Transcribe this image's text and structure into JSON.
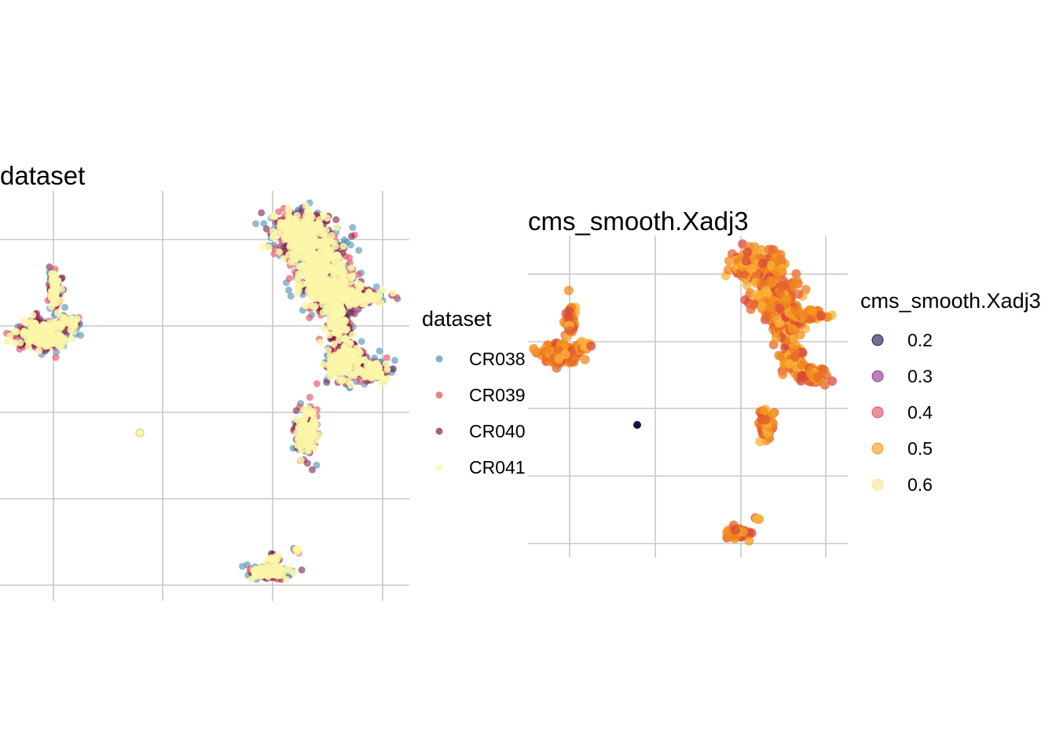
{
  "colors": {
    "CR038": "#4f8db3",
    "CR039": "#e3475a",
    "CR040": "#7e1e4f",
    "CR041": "#fbf7a8",
    "scale": [
      "#1b0c41",
      "#8d2c8a",
      "#d94a5b",
      "#f7941d",
      "#fae38f"
    ]
  },
  "chart_data": [
    {
      "type": "scatter",
      "title": "dataset",
      "xlabel": "",
      "ylabel": "",
      "x_breaks": 4,
      "y_breaks": 5,
      "grid": true,
      "axis_labels_shown": false,
      "legend": {
        "title": "dataset",
        "placement": "right",
        "entries": [
          "CR038",
          "CR039",
          "CR040",
          "CR041"
        ]
      },
      "series": [
        {
          "name": "CR038",
          "clusters": [
            "top-right large cluster edge",
            "left cluster edge",
            "lower-right clusters edge"
          ]
        },
        {
          "name": "CR039",
          "clusters": [
            "all clusters edge"
          ]
        },
        {
          "name": "CR040",
          "clusters": [
            "all clusters edge"
          ]
        },
        {
          "name": "CR041",
          "clusters": [
            "top-right large cluster",
            "left cluster",
            "middle-right small cluster",
            "bottom cluster",
            "isolated point"
          ]
        }
      ]
    },
    {
      "type": "scatter",
      "title": "cms_smooth.Xadj3",
      "xlabel": "",
      "ylabel": "",
      "x_breaks": 4,
      "y_breaks": 5,
      "grid": true,
      "axis_labels_shown": false,
      "legend": {
        "title": "cms_smooth.Xadj3",
        "placement": "right",
        "entries": [
          "0.2",
          "0.3",
          "0.4",
          "0.5",
          "0.6"
        ]
      },
      "color_values": [
        0.2,
        0.3,
        0.4,
        0.5,
        0.6
      ],
      "dominant_value_range": [
        0.45,
        0.55
      ],
      "isolated_point_value": 0.2
    }
  ]
}
